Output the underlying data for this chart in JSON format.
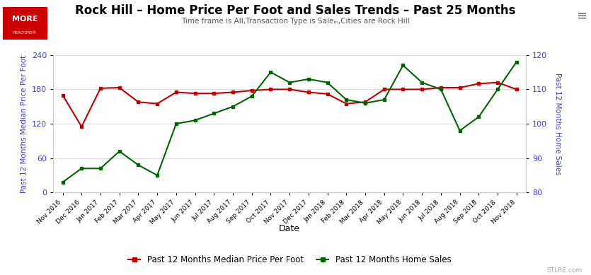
{
  "title": "Rock Hill – Home Price Per Foot and Sales Trends – Past 25 Months",
  "subtitle": "Time frame is All,Transaction Type is Saleₘ,Cities are Rock Hill",
  "xlabel": "Date",
  "ylabel_left": "Past 12 Months Median Price Per Foot",
  "ylabel_right": "Past 12 Months Home Sales",
  "x_labels": [
    "Nov 2016",
    "Dec 2016",
    "Jan 2017",
    "Feb 2017",
    "Mar 2017",
    "Apr 2017",
    "May 2017",
    "Jun 2017",
    "Jul 2017",
    "Aug 2017",
    "Sep 2017",
    "Oct 2017",
    "Nov 2017",
    "Dec 2017",
    "Jan 2018",
    "Feb 2018",
    "Mar 2018",
    "Apr 2018",
    "May 2018",
    "Jun 2018",
    "Jul 2018",
    "Aug 2018",
    "Sep 2018",
    "Oct 2018",
    "Nov 2018"
  ],
  "red_values": [
    170,
    115,
    182,
    183,
    158,
    155,
    175,
    173,
    173,
    175,
    178,
    180,
    180,
    175,
    172,
    155,
    158,
    180,
    180,
    180,
    183,
    183,
    190,
    192,
    180
  ],
  "green_values": [
    83,
    87,
    87,
    92,
    88,
    85,
    100,
    101,
    103,
    105,
    108,
    115,
    112,
    113,
    112,
    107,
    106,
    107,
    117,
    112,
    110,
    98,
    102,
    110,
    118
  ],
  "red_color": "#c00000",
  "green_color": "#006400",
  "ylim_left": [
    0,
    240
  ],
  "ylim_right": [
    80,
    120
  ],
  "yticks_left": [
    0,
    60,
    120,
    180,
    240
  ],
  "yticks_right": [
    80,
    90,
    100,
    110,
    120
  ],
  "legend_label_red": "Past 12 Months Median Price Per Foot",
  "legend_label_green": "Past 12 Months Home Sales",
  "bg_color": "#ffffff",
  "grid_color": "#d9d9d9",
  "title_color": "#000000",
  "subtitle_color": "#555555",
  "axis_label_color": "#4040cc",
  "watermark": "STLRE.com"
}
